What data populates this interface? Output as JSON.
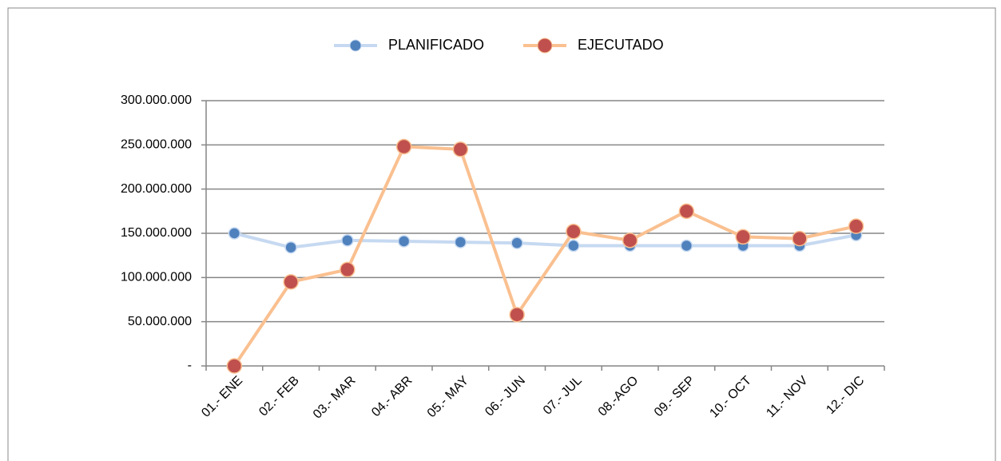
{
  "chart_data": {
    "type": "line",
    "categories": [
      "01.- ENE",
      "02.- FEB",
      "03.- MAR",
      "04.- ABR",
      "05.- MAY",
      "06.- JUN",
      "07.- JUL",
      "08.-AGO",
      "09.- SEP",
      "10.- OCT",
      "11.- NOV",
      "12.- DIC"
    ],
    "series": [
      {
        "name": "PLANIFICADO",
        "color": "#4f81bd",
        "line_color": "#c6d9f1",
        "values": [
          150000000,
          134000000,
          142000000,
          141000000,
          140000000,
          139000000,
          136000000,
          136000000,
          136000000,
          136000000,
          136000000,
          148000000
        ]
      },
      {
        "name": "EJECUTADO",
        "color": "#c0504d",
        "line_color": "#fac090",
        "values": [
          0,
          95000000,
          109000000,
          248000000,
          245000000,
          58000000,
          152000000,
          142000000,
          175000000,
          146000000,
          144000000,
          158000000
        ]
      }
    ],
    "ylim": [
      0,
      300000000
    ],
    "yticks": [
      {
        "value": 0,
        "label": "-"
      },
      {
        "value": 50000000,
        "label": "50.000.000"
      },
      {
        "value": 100000000,
        "label": "100.000.000"
      },
      {
        "value": 150000000,
        "label": "150.000.000"
      },
      {
        "value": 200000000,
        "label": "200.000.000"
      },
      {
        "value": 250000000,
        "label": "250.000.000"
      },
      {
        "value": 300000000,
        "label": "300.000.000"
      }
    ],
    "grid": true,
    "legend": "top"
  }
}
